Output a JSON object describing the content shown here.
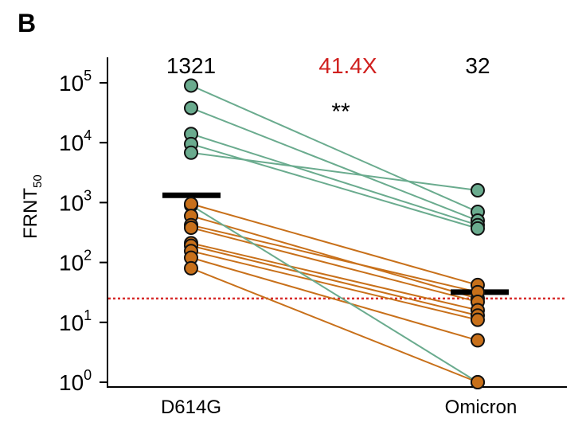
{
  "panel_label": "B",
  "chart_data": {
    "type": "scatter",
    "subtype": "paired-dot-plot",
    "scale": "log10",
    "ylabel_main": "FRNT",
    "ylabel_sub": "50",
    "ylim": [
      1,
      500000
    ],
    "yticks": [
      {
        "value": 1,
        "base": "10",
        "exp": "0"
      },
      {
        "value": 10,
        "base": "10",
        "exp": "1"
      },
      {
        "value": 100,
        "base": "10",
        "exp": "2"
      },
      {
        "value": 1000,
        "base": "10",
        "exp": "3"
      },
      {
        "value": 10000,
        "base": "10",
        "exp": "4"
      },
      {
        "value": 100000,
        "base": "10",
        "exp": "5"
      }
    ],
    "categories": [
      "D614G",
      "Omicron"
    ],
    "summary": {
      "left_value": "1321",
      "fold_change": "41.4X",
      "right_value": "32",
      "significance": "**"
    },
    "geometric_means": [
      1321,
      32
    ],
    "detection_limit": 25,
    "colors": {
      "green": "#6aab8e",
      "orange": "#c8701a",
      "red_text": "#d0201f",
      "limit_line": "#d62b2b"
    },
    "pairs": [
      {
        "d614g": 90000,
        "omicron": 700,
        "color": "green"
      },
      {
        "d614g": 38000,
        "omicron": 500,
        "color": "green"
      },
      {
        "d614g": 14000,
        "omicron": 420,
        "color": "green"
      },
      {
        "d614g": 9500,
        "omicron": 370,
        "color": "green"
      },
      {
        "d614g": 6800,
        "omicron": 1600,
        "color": "green"
      },
      {
        "d614g": 900,
        "omicron": 1,
        "color": "green"
      },
      {
        "d614g": 950,
        "omicron": 42,
        "color": "orange"
      },
      {
        "d614g": 600,
        "omicron": 25,
        "color": "orange"
      },
      {
        "d614g": 420,
        "omicron": 32,
        "color": "orange"
      },
      {
        "d614g": 380,
        "omicron": 22,
        "color": "orange"
      },
      {
        "d614g": 210,
        "omicron": 16,
        "color": "orange"
      },
      {
        "d614g": 190,
        "omicron": 13,
        "color": "orange"
      },
      {
        "d614g": 155,
        "omicron": 11,
        "color": "orange"
      },
      {
        "d614g": 120,
        "omicron": 5,
        "color": "orange"
      },
      {
        "d614g": 80,
        "omicron": 1,
        "color": "orange"
      }
    ]
  }
}
